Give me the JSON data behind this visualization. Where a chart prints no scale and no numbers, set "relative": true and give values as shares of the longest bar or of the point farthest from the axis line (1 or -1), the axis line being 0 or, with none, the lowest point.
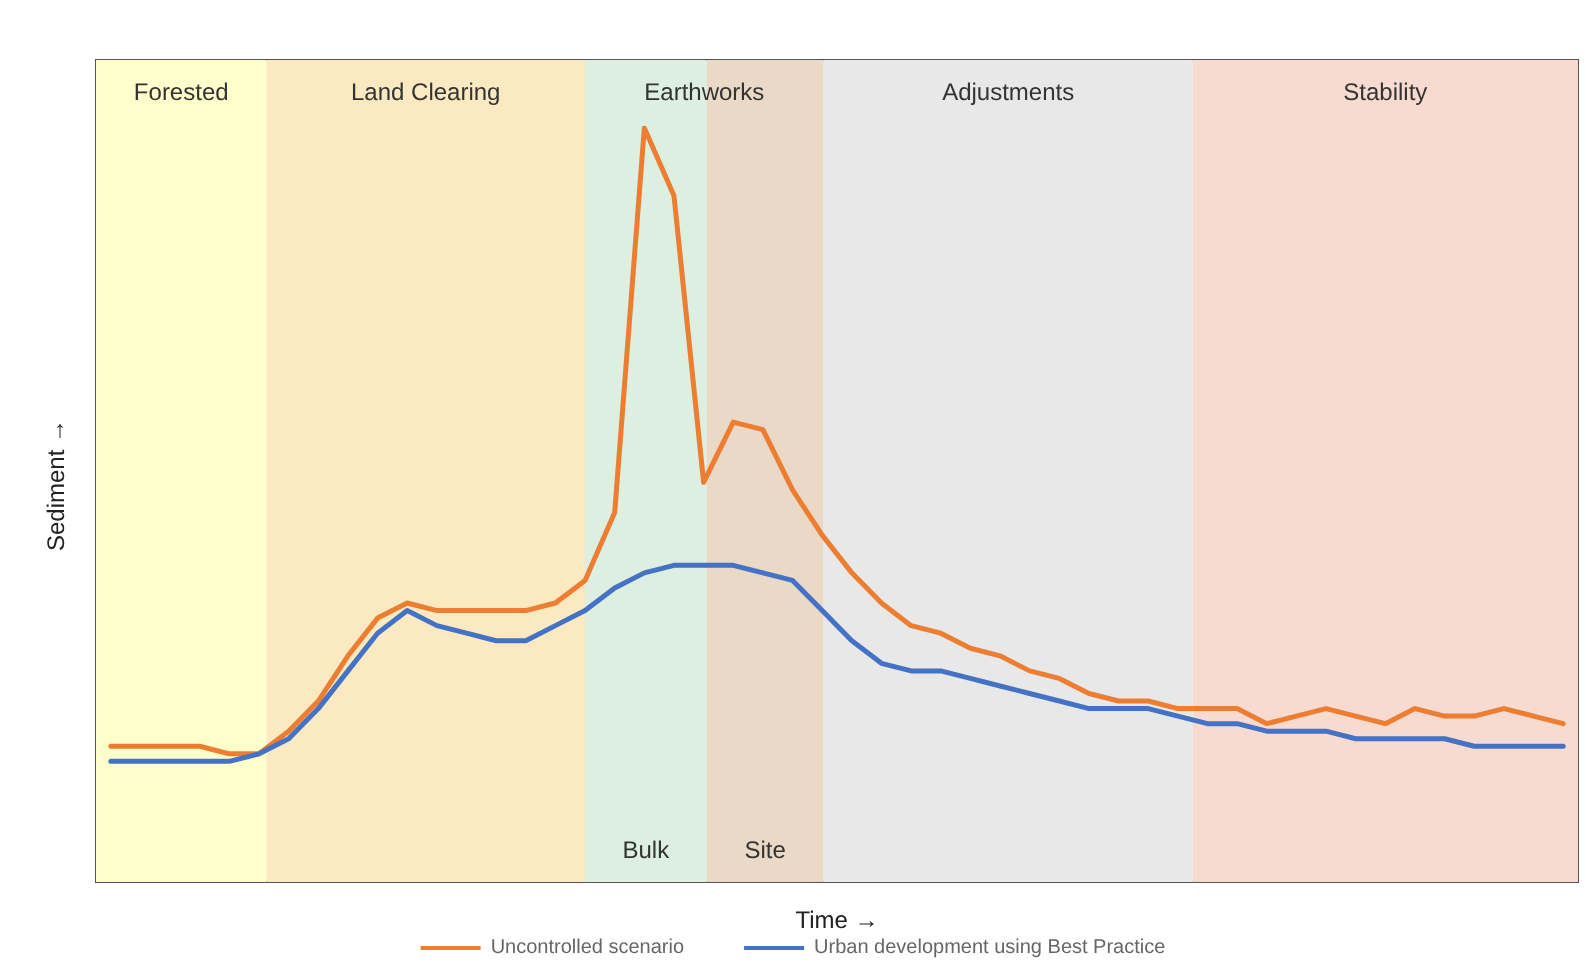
{
  "chart_data": {
    "type": "line",
    "relative": true,
    "xlabel": "Time →",
    "ylabel": "Sediment →",
    "legend": "bottom",
    "grid": false,
    "marker": "none",
    "line_style": "solid",
    "categories": [
      null,
      null,
      null,
      null,
      null,
      null,
      null,
      null,
      null,
      null,
      null,
      null,
      null,
      null,
      null,
      null,
      null,
      null,
      null,
      null,
      null,
      null,
      null,
      null,
      null,
      null,
      null,
      null,
      null,
      null,
      null,
      null,
      null,
      null,
      null,
      null,
      null,
      null,
      null,
      null,
      null,
      null,
      null,
      null,
      null,
      null,
      null,
      null,
      null,
      null
    ],
    "annotations": [
      "Forested",
      "Land Clearing",
      "Bulk",
      "Site",
      "Earthworks",
      "Adjustments",
      "Stability"
    ],
    "series": [
      {
        "name": "Uncontrolled scenario",
        "color": "#ed7d31",
        "values": [
          0.18,
          0.18,
          0.18,
          0.18,
          0.17,
          0.17,
          0.2,
          0.24,
          0.3,
          0.35,
          0.37,
          0.36,
          0.36,
          0.36,
          0.36,
          0.37,
          0.4,
          0.49,
          1,
          0.91,
          0.53,
          0.61,
          0.6,
          0.52,
          0.46,
          0.41,
          0.37,
          0.34,
          0.33,
          0.31,
          0.3,
          0.28,
          0.27,
          0.25,
          0.24,
          0.24,
          0.23,
          0.23,
          0.23,
          0.21,
          0.22,
          0.23,
          0.22,
          0.21,
          0.23,
          0.22,
          0.22,
          0.23,
          0.22,
          0.21
        ]
      },
      {
        "name": "Urban development using Best Practice",
        "color": "#4472c4",
        "values": [
          0.16,
          0.16,
          0.16,
          0.16,
          0.16,
          0.17,
          0.19,
          0.23,
          0.28,
          0.33,
          0.36,
          0.34,
          0.33,
          0.32,
          0.32,
          0.34,
          0.36,
          0.39,
          0.41,
          0.42,
          0.42,
          0.42,
          0.41,
          0.4,
          0.36,
          0.32,
          0.29,
          0.28,
          0.28,
          0.27,
          0.26,
          0.25,
          0.24,
          0.23,
          0.23,
          0.23,
          0.22,
          0.21,
          0.21,
          0.2,
          0.2,
          0.2,
          0.19,
          0.19,
          0.19,
          0.19,
          0.18,
          0.18,
          0.18,
          0.18
        ]
      }
    ]
  }
}
